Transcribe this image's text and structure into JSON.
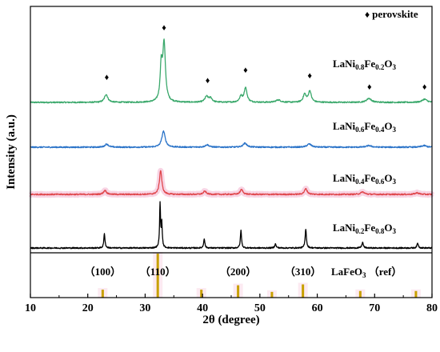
{
  "chart_data": {
    "type": "line",
    "xlabel": "2θ (degree)",
    "ylabel": "Intensity (a.u.)",
    "xlim": [
      10,
      80
    ],
    "x_ticks": [
      "10",
      "20",
      "30",
      "40",
      "50",
      "60",
      "70",
      "80"
    ],
    "legend": {
      "symbol": "♦",
      "text": "perovskite",
      "placement": "top-right"
    },
    "colors": {
      "green": "#3aa86b",
      "blue": "#2a73c8",
      "red": "#e0474c",
      "black": "#000000",
      "ref": "#c8a000",
      "glow": "#f5c2d8"
    },
    "series": [
      {
        "name": "LaNi0.8Fe0.2O3",
        "label_parts": [
          [
            "LaNi",
            ""
          ],
          [
            "0.8",
            "sub"
          ],
          [
            "Fe",
            ""
          ],
          [
            "0.2",
            "sub"
          ],
          [
            "O",
            ""
          ],
          [
            "3",
            "sub"
          ]
        ],
        "color": "#3aa86b",
        "peaks": [
          [
            23.2,
            10,
            0.35
          ],
          [
            32.8,
            42,
            0.22
          ],
          [
            33.3,
            72,
            0.28
          ],
          [
            40.7,
            7,
            0.35
          ],
          [
            41.4,
            5,
            0.35
          ],
          [
            46.7,
            7,
            0.3
          ],
          [
            47.5,
            18,
            0.3
          ],
          [
            53.2,
            3,
            0.5
          ],
          [
            57.8,
            10,
            0.3
          ],
          [
            58.7,
            14,
            0.3
          ],
          [
            69.0,
            5,
            0.5
          ],
          [
            78.7,
            4,
            0.5
          ]
        ]
      },
      {
        "name": "LaNi0.6Fe0.4O3",
        "label_parts": [
          [
            "LaNi",
            ""
          ],
          [
            "0.6",
            "sub"
          ],
          [
            "Fe",
            ""
          ],
          [
            "0.4",
            "sub"
          ],
          [
            "O",
            ""
          ],
          [
            "3",
            "sub"
          ]
        ],
        "color": "#2a73c8",
        "peaks": [
          [
            23.3,
            4,
            0.35
          ],
          [
            33.2,
            20,
            0.35
          ],
          [
            40.8,
            3,
            0.4
          ],
          [
            47.4,
            5,
            0.4
          ],
          [
            58.6,
            4,
            0.45
          ],
          [
            69.0,
            2,
            0.5
          ],
          [
            78.6,
            2,
            0.5
          ]
        ]
      },
      {
        "name": "LaNi0.4Fe0.6O3",
        "label_parts": [
          [
            "LaNi",
            ""
          ],
          [
            "0.4",
            "sub"
          ],
          [
            "Fe",
            ""
          ],
          [
            "0.6",
            "sub"
          ],
          [
            "O",
            ""
          ],
          [
            "3",
            "sub"
          ]
        ],
        "color": "#e0474c",
        "peaks": [
          [
            23.0,
            5,
            0.3
          ],
          [
            32.7,
            30,
            0.25
          ],
          [
            40.4,
            4,
            0.3
          ],
          [
            46.8,
            6,
            0.3
          ],
          [
            58.0,
            7,
            0.3
          ],
          [
            67.9,
            3,
            0.4
          ],
          [
            77.4,
            2,
            0.4
          ]
        ]
      },
      {
        "name": "LaNi0.2Fe0.8O3",
        "label_parts": [
          [
            "LaNi",
            ""
          ],
          [
            "0.2",
            "sub"
          ],
          [
            "Fe",
            ""
          ],
          [
            "0.8",
            "sub"
          ],
          [
            "O",
            ""
          ],
          [
            "3",
            "sub"
          ]
        ],
        "color": "#000000",
        "peaks": [
          [
            22.9,
            18,
            0.12
          ],
          [
            32.6,
            55,
            0.1
          ],
          [
            32.9,
            30,
            0.1
          ],
          [
            40.3,
            12,
            0.12
          ],
          [
            46.7,
            22,
            0.12
          ],
          [
            52.7,
            5,
            0.15
          ],
          [
            58.0,
            24,
            0.13
          ],
          [
            67.9,
            7,
            0.15
          ],
          [
            77.5,
            6,
            0.15
          ]
        ]
      }
    ],
    "perovskite_markers": [
      23.3,
      33.3,
      40.9,
      47.5,
      58.7,
      69.1,
      78.7
    ],
    "reference": {
      "label_parts": [
        [
          "LaFeO",
          ""
        ],
        [
          "3",
          "sub"
        ],
        [
          " （ref）",
          ""
        ]
      ],
      "sticks": [
        [
          22.6,
          18
        ],
        [
          32.2,
          100
        ],
        [
          39.8,
          18
        ],
        [
          46.2,
          28
        ],
        [
          52.1,
          13
        ],
        [
          57.5,
          30
        ],
        [
          67.5,
          15
        ],
        [
          77.2,
          15
        ]
      ],
      "hkl": [
        {
          "text": "（100）",
          "x": 22.6
        },
        {
          "text": "（110）",
          "x": 32.2
        },
        {
          "text": "（200）",
          "x": 46.2
        },
        {
          "text": "（310）",
          "x": 57.5
        }
      ]
    }
  }
}
